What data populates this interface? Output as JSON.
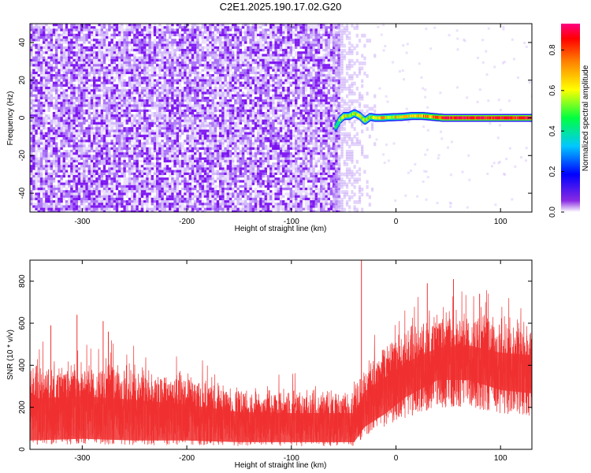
{
  "page": {
    "title": "C2E1.2025.190.17.02.G20"
  },
  "chart_data": [
    {
      "type": "heatmap",
      "title": "C2E1.2025.190.17.02.G20",
      "xlabel": "Height of straight line (km)",
      "ylabel": "Frequency (Hz)",
      "xlim": [
        -350,
        130
      ],
      "ylim": [
        -50,
        50
      ],
      "x_ticks": [
        -300,
        -200,
        -100,
        0,
        100
      ],
      "y_ticks": [
        -40,
        -20,
        0,
        20,
        40
      ],
      "colorbar": {
        "label": "Normalized spectral amplitude",
        "range": [
          0,
          0.93
        ],
        "ticks": [
          0.0,
          0.2,
          0.4,
          0.6,
          0.8
        ],
        "colormap": [
          "#ffffff",
          "#7a00ff",
          "#0000ff",
          "#00c8ff",
          "#00ff40",
          "#ffff00",
          "#ff8000",
          "#ff0000",
          "#ff0080"
        ]
      },
      "noise_region": {
        "x_range": [
          -350,
          -55
        ],
        "freq_range": [
          -50,
          50
        ],
        "amplitude_range": [
          0.0,
          0.15
        ]
      },
      "sparse_region": {
        "x_range": [
          -60,
          -20
        ],
        "freq_range": [
          -50,
          50
        ],
        "amplitude_range": [
          0.0,
          0.08
        ]
      },
      "signal_track": [
        {
          "x": -58,
          "freq": -5.0,
          "amp": 0.45
        },
        {
          "x": -54,
          "freq": -1.0,
          "amp": 0.55
        },
        {
          "x": -50,
          "freq": 1.0,
          "amp": 0.6
        },
        {
          "x": -45,
          "freq": 1.0,
          "amp": 0.55
        },
        {
          "x": -40,
          "freq": 2.5,
          "amp": 0.6
        },
        {
          "x": -35,
          "freq": 1.0,
          "amp": 0.55
        },
        {
          "x": -30,
          "freq": -1.5,
          "amp": 0.6
        },
        {
          "x": -25,
          "freq": 0.5,
          "amp": 0.55
        },
        {
          "x": -20,
          "freq": 0.0,
          "amp": 0.6
        },
        {
          "x": -15,
          "freq": 0.0,
          "amp": 0.65
        },
        {
          "x": -5,
          "freq": 0.3,
          "amp": 0.6
        },
        {
          "x": 5,
          "freq": 0.5,
          "amp": 0.65
        },
        {
          "x": 15,
          "freq": 1.0,
          "amp": 0.6
        },
        {
          "x": 25,
          "freq": 1.0,
          "amp": 0.7
        },
        {
          "x": 35,
          "freq": 0.5,
          "amp": 0.75
        },
        {
          "x": 45,
          "freq": 0.0,
          "amp": 0.85
        },
        {
          "x": 60,
          "freq": 0.0,
          "amp": 0.85
        },
        {
          "x": 80,
          "freq": 0.0,
          "amp": 0.85
        },
        {
          "x": 100,
          "freq": 0.0,
          "amp": 0.85
        },
        {
          "x": 130,
          "freq": 0.0,
          "amp": 0.85
        }
      ]
    },
    {
      "type": "line",
      "xlabel": "Height of straight line (km)",
      "ylabel": "SNR (10 * v/v)",
      "xlim": [
        -350,
        130
      ],
      "ylim": [
        0,
        900
      ],
      "x_ticks": [
        -300,
        -200,
        -100,
        0,
        100
      ],
      "y_ticks": [
        0,
        200,
        400,
        600,
        800
      ],
      "color": "#f03030",
      "envelope": [
        {
          "x": -350,
          "low": 20,
          "mean": 210,
          "high": 420
        },
        {
          "x": -300,
          "low": 25,
          "mean": 220,
          "high": 440
        },
        {
          "x": -250,
          "low": 20,
          "mean": 205,
          "high": 420
        },
        {
          "x": -200,
          "low": 20,
          "mean": 185,
          "high": 370
        },
        {
          "x": -150,
          "low": 15,
          "mean": 155,
          "high": 310
        },
        {
          "x": -100,
          "low": 15,
          "mean": 150,
          "high": 300
        },
        {
          "x": -60,
          "low": 15,
          "mean": 150,
          "high": 300
        },
        {
          "x": -40,
          "low": 15,
          "mean": 150,
          "high": 300
        },
        {
          "x": -30,
          "low": 60,
          "mean": 240,
          "high": 420
        },
        {
          "x": -10,
          "low": 100,
          "mean": 300,
          "high": 520
        },
        {
          "x": 10,
          "low": 150,
          "mean": 360,
          "high": 600
        },
        {
          "x": 40,
          "low": 200,
          "mean": 420,
          "high": 700
        },
        {
          "x": 70,
          "low": 200,
          "mean": 430,
          "high": 690
        },
        {
          "x": 100,
          "low": 170,
          "mean": 400,
          "high": 650
        },
        {
          "x": 130,
          "low": 160,
          "mean": 390,
          "high": 640
        }
      ],
      "peaks": [
        {
          "x": -305,
          "y": 640
        },
        {
          "x": -275,
          "y": 560
        },
        {
          "x": -280,
          "y": 610
        },
        {
          "x": -330,
          "y": 590
        },
        {
          "x": -33,
          "y": 900
        },
        {
          "x": 30,
          "y": 790
        },
        {
          "x": 55,
          "y": 810
        },
        {
          "x": 80,
          "y": 740
        }
      ]
    }
  ]
}
